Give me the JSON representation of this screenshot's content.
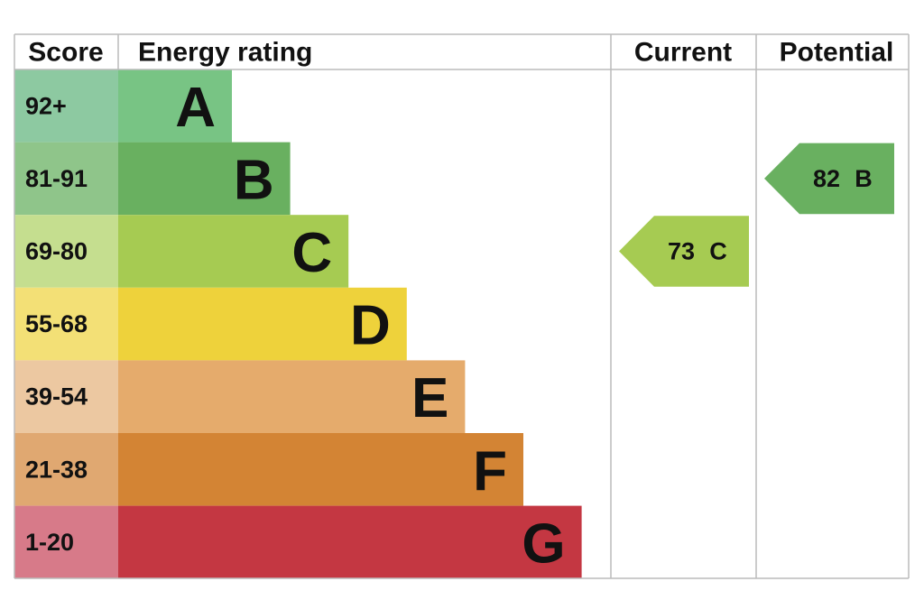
{
  "header": {
    "score": "Score",
    "rating": "Energy rating",
    "current": "Current",
    "potential": "Potential"
  },
  "rows": [
    {
      "score": "92+",
      "letter": "A",
      "color": "#78c484",
      "score_color": "#8dc9a1"
    },
    {
      "score": "81-91",
      "letter": "B",
      "color": "#69b060",
      "score_color": "#8fc58a"
    },
    {
      "score": "69-80",
      "letter": "C",
      "color": "#a6cb52",
      "score_color": "#c5de8f"
    },
    {
      "score": "55-68",
      "letter": "D",
      "color": "#eed23b",
      "score_color": "#f3e076"
    },
    {
      "score": "39-54",
      "letter": "E",
      "color": "#e5ab6c",
      "score_color": "#ecc8a1"
    },
    {
      "score": "21-38",
      "letter": "F",
      "color": "#d38434",
      "score_color": "#e0a871"
    },
    {
      "score": "1-20",
      "letter": "G",
      "color": "#c43742",
      "score_color": "#d77a89"
    }
  ],
  "current": {
    "value": 73,
    "letter": "C"
  },
  "potential": {
    "value": 82,
    "letter": "B"
  }
}
